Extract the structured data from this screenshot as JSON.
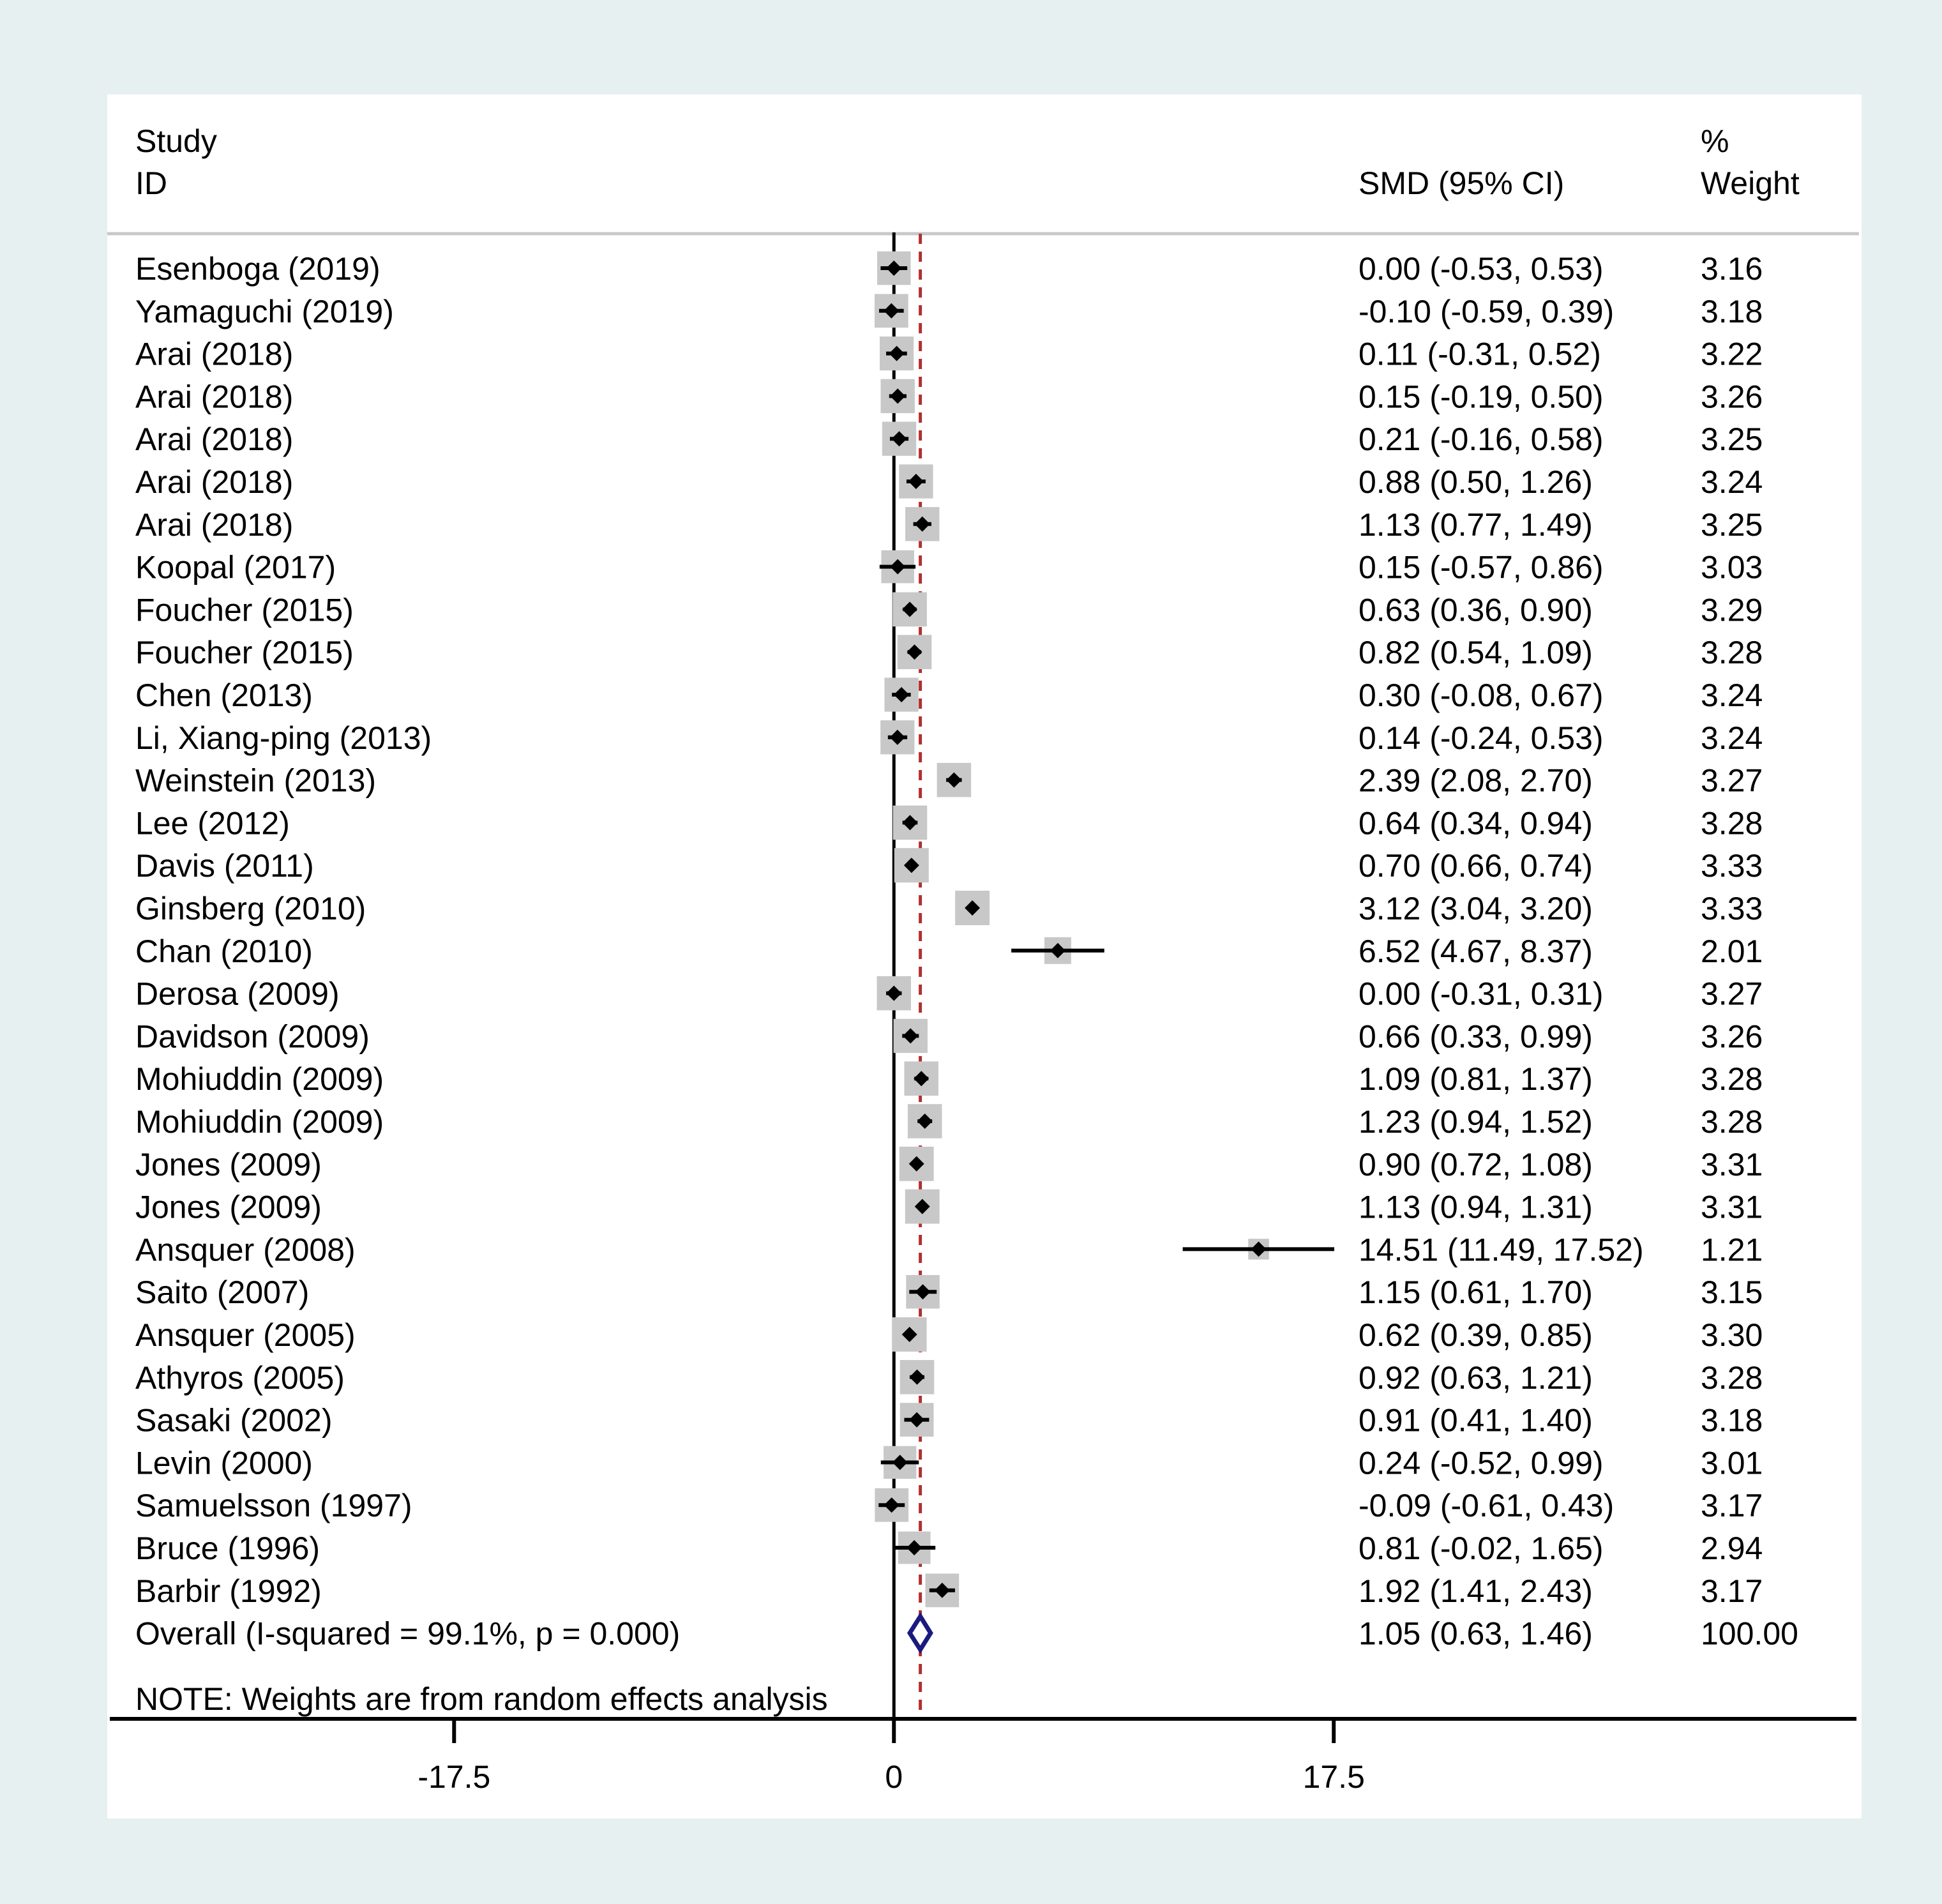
{
  "colors": {
    "outer_background": "#e6f0f0",
    "plot_background": "#ffffff",
    "box": "#c8c8c8",
    "marker": "#000000",
    "ref_line": "#000000",
    "overall_line": "#b03030",
    "overall_diamond": "#1a1a80"
  },
  "chart_data": {
    "type": "forest",
    "header": {
      "study_line1": "Study",
      "study_line2": "ID",
      "effect": "SMD (95% CI)",
      "weight_line1": "%",
      "weight_line2": "Weight"
    },
    "x_ticks": [
      -17.5,
      0,
      17.5
    ],
    "x_tick_labels": [
      "-17.5",
      "0",
      "17.5"
    ],
    "xlim": [
      -31.3,
      38.5
    ],
    "reference_line": 0,
    "studies": [
      {
        "label": "Esenboga (2019)",
        "smd": 0.0,
        "lower": -0.53,
        "upper": 0.53,
        "ci_text": "0.00 (-0.53, 0.53)",
        "weight": 3.16,
        "weight_text": "3.16"
      },
      {
        "label": "Yamaguchi (2019)",
        "smd": -0.1,
        "lower": -0.59,
        "upper": 0.39,
        "ci_text": "-0.10 (-0.59, 0.39)",
        "weight": 3.18,
        "weight_text": "3.18"
      },
      {
        "label": "Arai (2018)",
        "smd": 0.11,
        "lower": -0.31,
        "upper": 0.52,
        "ci_text": "0.11 (-0.31, 0.52)",
        "weight": 3.22,
        "weight_text": "3.22"
      },
      {
        "label": "Arai (2018)",
        "smd": 0.15,
        "lower": -0.19,
        "upper": 0.5,
        "ci_text": "0.15 (-0.19, 0.50)",
        "weight": 3.26,
        "weight_text": "3.26"
      },
      {
        "label": "Arai (2018)",
        "smd": 0.21,
        "lower": -0.16,
        "upper": 0.58,
        "ci_text": "0.21 (-0.16, 0.58)",
        "weight": 3.25,
        "weight_text": "3.25"
      },
      {
        "label": "Arai (2018)",
        "smd": 0.88,
        "lower": 0.5,
        "upper": 1.26,
        "ci_text": "0.88 (0.50, 1.26)",
        "weight": 3.24,
        "weight_text": "3.24"
      },
      {
        "label": "Arai (2018)",
        "smd": 1.13,
        "lower": 0.77,
        "upper": 1.49,
        "ci_text": "1.13 (0.77, 1.49)",
        "weight": 3.25,
        "weight_text": "3.25"
      },
      {
        "label": "Koopal (2017)",
        "smd": 0.15,
        "lower": -0.57,
        "upper": 0.86,
        "ci_text": "0.15 (-0.57, 0.86)",
        "weight": 3.03,
        "weight_text": "3.03"
      },
      {
        "label": "Foucher (2015)",
        "smd": 0.63,
        "lower": 0.36,
        "upper": 0.9,
        "ci_text": "0.63 (0.36, 0.90)",
        "weight": 3.29,
        "weight_text": "3.29"
      },
      {
        "label": "Foucher (2015)",
        "smd": 0.82,
        "lower": 0.54,
        "upper": 1.09,
        "ci_text": "0.82 (0.54, 1.09)",
        "weight": 3.28,
        "weight_text": "3.28"
      },
      {
        "label": "Chen (2013)",
        "smd": 0.3,
        "lower": -0.08,
        "upper": 0.67,
        "ci_text": "0.30 (-0.08, 0.67)",
        "weight": 3.24,
        "weight_text": "3.24"
      },
      {
        "label": "Li, Xiang-ping (2013)",
        "smd": 0.14,
        "lower": -0.24,
        "upper": 0.53,
        "ci_text": "0.14 (-0.24, 0.53)",
        "weight": 3.24,
        "weight_text": "3.24"
      },
      {
        "label": "Weinstein (2013)",
        "smd": 2.39,
        "lower": 2.08,
        "upper": 2.7,
        "ci_text": "2.39 (2.08, 2.70)",
        "weight": 3.27,
        "weight_text": "3.27"
      },
      {
        "label": "Lee (2012)",
        "smd": 0.64,
        "lower": 0.34,
        "upper": 0.94,
        "ci_text": "0.64 (0.34, 0.94)",
        "weight": 3.28,
        "weight_text": "3.28"
      },
      {
        "label": "Davis (2011)",
        "smd": 0.7,
        "lower": 0.66,
        "upper": 0.74,
        "ci_text": "0.70 (0.66, 0.74)",
        "weight": 3.33,
        "weight_text": "3.33"
      },
      {
        "label": "Ginsberg (2010)",
        "smd": 3.12,
        "lower": 3.04,
        "upper": 3.2,
        "ci_text": "3.12 (3.04, 3.20)",
        "weight": 3.33,
        "weight_text": "3.33"
      },
      {
        "label": "Chan (2010)",
        "smd": 6.52,
        "lower": 4.67,
        "upper": 8.37,
        "ci_text": "6.52 (4.67, 8.37)",
        "weight": 2.01,
        "weight_text": "2.01"
      },
      {
        "label": "Derosa (2009)",
        "smd": 0.0,
        "lower": -0.31,
        "upper": 0.31,
        "ci_text": "0.00 (-0.31, 0.31)",
        "weight": 3.27,
        "weight_text": "3.27"
      },
      {
        "label": "Davidson (2009)",
        "smd": 0.66,
        "lower": 0.33,
        "upper": 0.99,
        "ci_text": "0.66 (0.33, 0.99)",
        "weight": 3.26,
        "weight_text": "3.26"
      },
      {
        "label": "Mohiuddin (2009)",
        "smd": 1.09,
        "lower": 0.81,
        "upper": 1.37,
        "ci_text": "1.09 (0.81, 1.37)",
        "weight": 3.28,
        "weight_text": "3.28"
      },
      {
        "label": "Mohiuddin (2009)",
        "smd": 1.23,
        "lower": 0.94,
        "upper": 1.52,
        "ci_text": "1.23 (0.94, 1.52)",
        "weight": 3.28,
        "weight_text": "3.28"
      },
      {
        "label": "Jones (2009)",
        "smd": 0.9,
        "lower": 0.72,
        "upper": 1.08,
        "ci_text": "0.90 (0.72, 1.08)",
        "weight": 3.31,
        "weight_text": "3.31"
      },
      {
        "label": "Jones (2009)",
        "smd": 1.13,
        "lower": 0.94,
        "upper": 1.31,
        "ci_text": "1.13 (0.94, 1.31)",
        "weight": 3.31,
        "weight_text": "3.31"
      },
      {
        "label": "Ansquer (2008)",
        "smd": 14.51,
        "lower": 11.49,
        "upper": 17.52,
        "ci_text": "14.51 (11.49, 17.52)",
        "weight": 1.21,
        "weight_text": "1.21"
      },
      {
        "label": "Saito (2007)",
        "smd": 1.15,
        "lower": 0.61,
        "upper": 1.7,
        "ci_text": "1.15 (0.61, 1.70)",
        "weight": 3.15,
        "weight_text": "3.15"
      },
      {
        "label": "Ansquer (2005)",
        "smd": 0.62,
        "lower": 0.39,
        "upper": 0.85,
        "ci_text": "0.62 (0.39, 0.85)",
        "weight": 3.3,
        "weight_text": "3.30"
      },
      {
        "label": "Athyros (2005)",
        "smd": 0.92,
        "lower": 0.63,
        "upper": 1.21,
        "ci_text": "0.92 (0.63, 1.21)",
        "weight": 3.28,
        "weight_text": "3.28"
      },
      {
        "label": "Sasaki (2002)",
        "smd": 0.91,
        "lower": 0.41,
        "upper": 1.4,
        "ci_text": "0.91 (0.41, 1.40)",
        "weight": 3.18,
        "weight_text": "3.18"
      },
      {
        "label": "Levin (2000)",
        "smd": 0.24,
        "lower": -0.52,
        "upper": 0.99,
        "ci_text": "0.24 (-0.52, 0.99)",
        "weight": 3.01,
        "weight_text": "3.01"
      },
      {
        "label": "Samuelsson (1997)",
        "smd": -0.09,
        "lower": -0.61,
        "upper": 0.43,
        "ci_text": "-0.09 (-0.61, 0.43)",
        "weight": 3.17,
        "weight_text": "3.17"
      },
      {
        "label": "Bruce (1996)",
        "smd": 0.81,
        "lower": -0.02,
        "upper": 1.65,
        "ci_text": "0.81 (-0.02, 1.65)",
        "weight": 2.94,
        "weight_text": "2.94"
      },
      {
        "label": "Barbir (1992)",
        "smd": 1.92,
        "lower": 1.41,
        "upper": 2.43,
        "ci_text": "1.92 (1.41, 2.43)",
        "weight": 3.17,
        "weight_text": "3.17"
      }
    ],
    "overall": {
      "label": "Overall  (I-squared = 99.1%, p = 0.000)",
      "smd": 1.05,
      "lower": 0.63,
      "upper": 1.46,
      "ci_text": "1.05 (0.63, 1.46)",
      "weight_text": "100.00"
    },
    "note": "NOTE: Weights are from random effects analysis"
  }
}
